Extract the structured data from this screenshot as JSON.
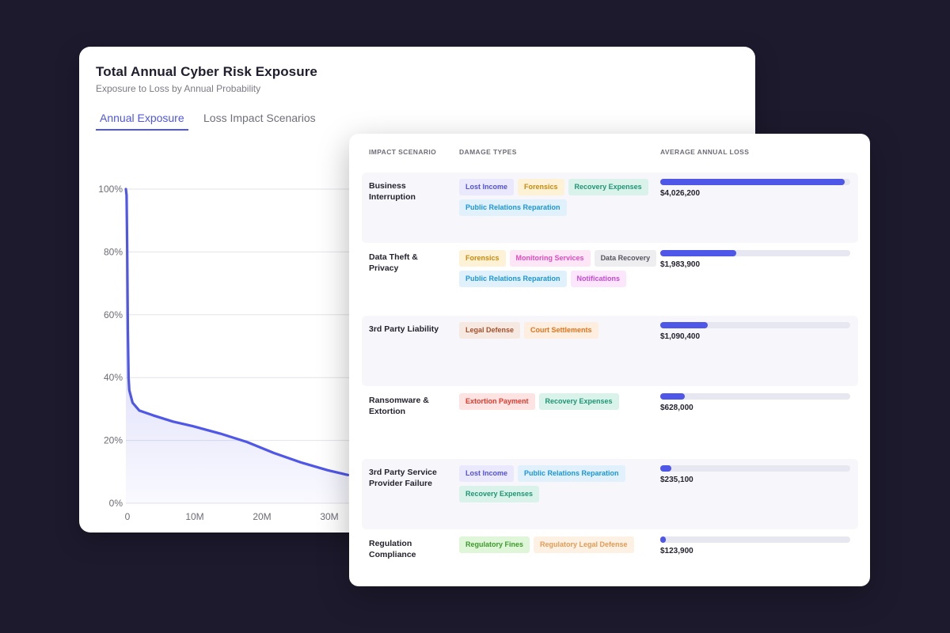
{
  "chart_card": {
    "title": "Total Annual Cyber Risk Exposure",
    "subtitle": "Exposure to Loss by Annual Probability",
    "tabs": [
      {
        "label": "Annual Exposure",
        "active": true
      },
      {
        "label": "Loss Impact Scenarios",
        "active": false
      }
    ]
  },
  "chart_data": {
    "type": "area",
    "ylim": [
      0,
      100
    ],
    "y_ticks": [
      "0%",
      "20%",
      "40%",
      "60%",
      "80%",
      "100%"
    ],
    "y_tick_values": [
      0,
      20,
      40,
      60,
      80,
      100
    ],
    "x_ticks": [
      "0",
      "10M",
      "20M",
      "30M"
    ],
    "x_tick_values": [
      0,
      10,
      20,
      30
    ],
    "x_unit": "M",
    "series": [
      {
        "points": [
          [
            0,
            100
          ],
          [
            0.1,
            98
          ],
          [
            0.2,
            80
          ],
          [
            0.3,
            55
          ],
          [
            0.4,
            40
          ],
          [
            0.5,
            36
          ],
          [
            1,
            32
          ],
          [
            2,
            29.5
          ],
          [
            4,
            28
          ],
          [
            7,
            26
          ],
          [
            10,
            24.5
          ],
          [
            14,
            22.2
          ],
          [
            18,
            19.5
          ],
          [
            22,
            16
          ],
          [
            26,
            13
          ],
          [
            30,
            10.5
          ],
          [
            33,
            9
          ]
        ]
      }
    ],
    "colors": {
      "line": "#4f57e8",
      "fill": "#6d70ee",
      "grid": "#e3e3ea"
    },
    "grid": true
  },
  "table": {
    "headers": [
      "IMPACT SCENARIO",
      "DAMAGE TYPES",
      "AVERAGE ANNUAL LOSS"
    ],
    "rows": [
      {
        "scenario": "Business Interruption",
        "tags": [
          {
            "label": "Lost Income",
            "color": "indigo"
          },
          {
            "label": "Forensics",
            "color": "yellow"
          },
          {
            "label": "Recovery Expenses",
            "color": "teal"
          },
          {
            "label": "Public Relations Reparation",
            "color": "sky"
          }
        ],
        "loss_fraction": 0.97,
        "loss": "$4,026,200"
      },
      {
        "scenario": "Data Theft & Privacy",
        "tags": [
          {
            "label": "Forensics",
            "color": "yellow"
          },
          {
            "label": "Monitoring Services",
            "color": "pink"
          },
          {
            "label": "Data Recovery",
            "color": "gray"
          },
          {
            "label": "Public Relations Reparation",
            "color": "sky"
          },
          {
            "label": "Notifications",
            "color": "magenta"
          }
        ],
        "loss_fraction": 0.4,
        "loss": "$1,983,900"
      },
      {
        "scenario": "3rd Party Liability",
        "tags": [
          {
            "label": "Legal Defense",
            "color": "brown"
          },
          {
            "label": "Court Settlements",
            "color": "orange"
          }
        ],
        "loss_fraction": 0.25,
        "loss": "$1,090,400"
      },
      {
        "scenario": "Ransomware & Extortion",
        "tags": [
          {
            "label": "Extortion Payment",
            "color": "red"
          },
          {
            "label": "Recovery Expenses",
            "color": "teal"
          }
        ],
        "loss_fraction": 0.13,
        "loss": "$628,000"
      },
      {
        "scenario": "3rd Party Service Provider Failure",
        "tags": [
          {
            "label": "Lost Income",
            "color": "indigo"
          },
          {
            "label": "Public Relations Reparation",
            "color": "sky"
          },
          {
            "label": "Recovery Expenses",
            "color": "teal"
          }
        ],
        "loss_fraction": 0.06,
        "loss": "$235,100"
      },
      {
        "scenario": "Regulation Compliance",
        "tags": [
          {
            "label": "Regulatory Fines",
            "color": "green"
          },
          {
            "label": "Regulatory Legal Defense",
            "color": "peach"
          }
        ],
        "loss_fraction": 0.025,
        "loss": "$123,900"
      }
    ]
  },
  "tag_palette": {
    "indigo": {
      "bg": "#e9e8fd",
      "fg": "#5451d6"
    },
    "yellow": {
      "bg": "#fdf2d6",
      "fg": "#c98a0e"
    },
    "teal": {
      "bg": "#daf3ea",
      "fg": "#1f9474"
    },
    "sky": {
      "bg": "#e0f1fc",
      "fg": "#1c95d6"
    },
    "pink": {
      "bg": "#fde6f6",
      "fg": "#e04bbd"
    },
    "gray": {
      "bg": "#eeeef1",
      "fg": "#55555f"
    },
    "magenta": {
      "bg": "#fbe6fb",
      "fg": "#c748d8"
    },
    "brown": {
      "bg": "#f6e9e2",
      "fg": "#a4502b"
    },
    "orange": {
      "bg": "#fdeee0",
      "fg": "#e2741c"
    },
    "red": {
      "bg": "#fde4e2",
      "fg": "#e0392c"
    },
    "green": {
      "bg": "#e0f6d9",
      "fg": "#3c9a2c"
    },
    "peach": {
      "bg": "#fdf1e4",
      "fg": "#e59b55"
    }
  }
}
